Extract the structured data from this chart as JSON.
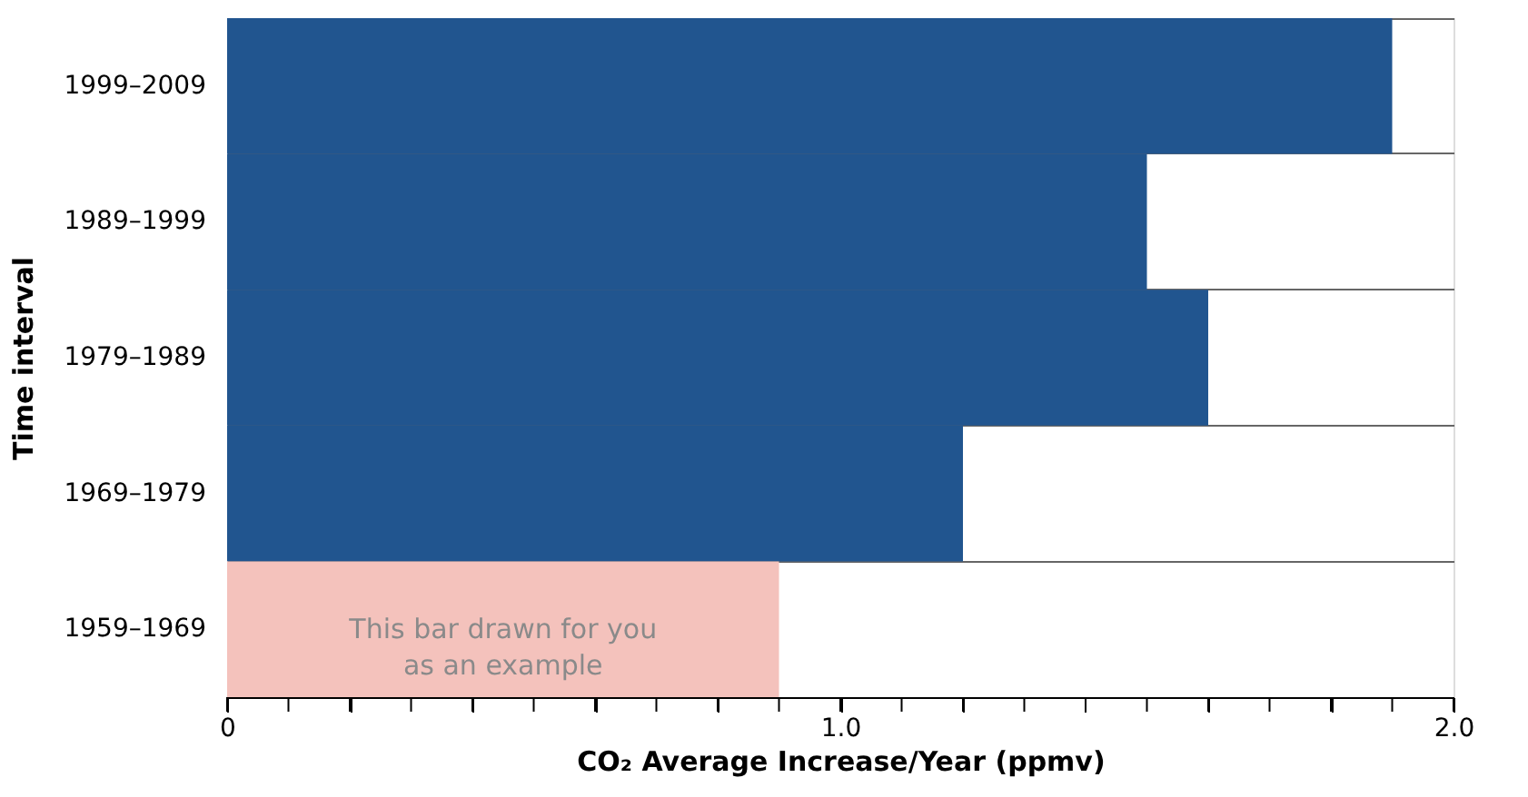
{
  "chart_data": {
    "type": "bar",
    "orientation": "horizontal",
    "xlabel": "CO₂ Average Increase/Year (ppmv)",
    "ylabel": "Time interval",
    "categories": [
      "1999–2009",
      "1989–1999",
      "1979–1989",
      "1969–1979",
      "1959–1969"
    ],
    "values": [
      1.9,
      1.5,
      1.6,
      1.2,
      0.9
    ],
    "colors": [
      "#21558f",
      "#21558f",
      "#21558f",
      "#21558f",
      "#f4c2bc"
    ],
    "xlim": [
      0,
      2
    ],
    "xticks": [
      0,
      {
        "value": 0.1,
        "label": null
      },
      {
        "value": 0.2,
        "label": null
      },
      {
        "value": 0.3,
        "label": null
      },
      {
        "value": 0.4,
        "label": null
      },
      {
        "value": 0.5,
        "label": null
      },
      {
        "value": 0.6,
        "label": null
      },
      {
        "value": 0.7,
        "label": null
      },
      {
        "value": 0.8,
        "label": null
      },
      {
        "value": 0.9,
        "label": null
      },
      {
        "value": 1,
        "label": "1.0"
      },
      {
        "value": 1.1,
        "label": null
      },
      {
        "value": 1.2,
        "label": null
      },
      {
        "value": 1.3,
        "label": null
      },
      {
        "value": 1.4,
        "label": null
      },
      {
        "value": 1.5,
        "label": null
      },
      {
        "value": 1.6,
        "label": null
      },
      {
        "value": 1.7,
        "label": null
      },
      {
        "value": 1.8,
        "label": null
      },
      {
        "value": 1.9,
        "label": null
      },
      {
        "value": 2,
        "label": "2.0"
      }
    ],
    "grid": "y",
    "annotations": [
      "This bar drawn for you\nas an example"
    ]
  }
}
